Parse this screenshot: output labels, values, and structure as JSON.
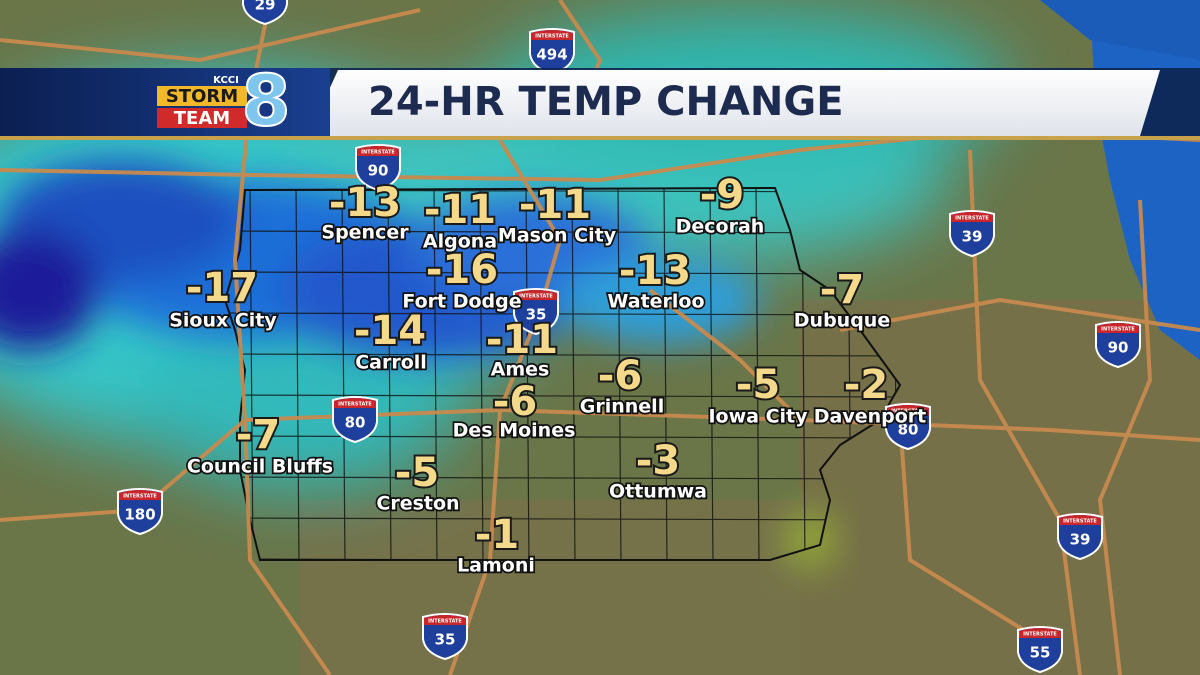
{
  "header": {
    "title": "24-HR TEMP CHANGE",
    "logo": {
      "station": "KCCI",
      "line1": "STORM",
      "line2": "TEAM",
      "number": "8"
    }
  },
  "cities": [
    {
      "name": "Spencer",
      "change": -13
    },
    {
      "name": "Algona",
      "change": -11
    },
    {
      "name": "Mason City",
      "change": -11
    },
    {
      "name": "Decorah",
      "change": -9
    },
    {
      "name": "Sioux City",
      "change": -17
    },
    {
      "name": "Fort Dodge",
      "change": -16
    },
    {
      "name": "Waterloo",
      "change": -13
    },
    {
      "name": "Dubuque",
      "change": -7
    },
    {
      "name": "Carroll",
      "change": -14
    },
    {
      "name": "Ames",
      "change": -11
    },
    {
      "name": "Grinnell",
      "change": -6
    },
    {
      "name": "Iowa City",
      "change": -5
    },
    {
      "name": "Davenport",
      "change": -2
    },
    {
      "name": "Des Moines",
      "change": -6
    },
    {
      "name": "Council Bluffs",
      "change": -7
    },
    {
      "name": "Creston",
      "change": -5
    },
    {
      "name": "Ottumwa",
      "change": -3
    },
    {
      "name": "Lamoni",
      "change": -1
    }
  ],
  "shield_label": "INTERSTATE",
  "interstates": [
    "29",
    "494",
    "90",
    "39",
    "35",
    "90",
    "80",
    "80",
    "180",
    "39",
    "35",
    "55"
  ]
}
